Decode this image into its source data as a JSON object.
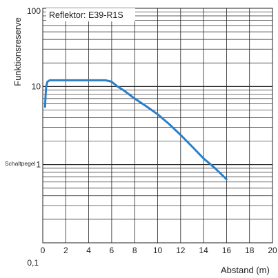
{
  "chart_data": {
    "type": "line",
    "title": "",
    "xlabel": "Abstand (m)",
    "ylabel": "Funktionsreserve",
    "x_ticks": [
      "0",
      "2",
      "4",
      "6",
      "8",
      "10",
      "12",
      "14",
      "16",
      "18",
      "20"
    ],
    "y_ticks": [
      "100",
      "10",
      "1",
      "0,1"
    ],
    "y_scale": "log",
    "xlim": [
      0,
      20
    ],
    "ylim": [
      0.1,
      100
    ],
    "grid": true,
    "legend_label": "Reflektor: E39-R1S",
    "threshold": {
      "label": "Schaltpegel",
      "value": 1.5
    },
    "series_color": "#2a7fc9",
    "series": [
      {
        "name": "",
        "x": [
          0.2,
          0.25,
          0.3,
          0.4,
          0.6,
          1,
          2,
          3,
          4,
          5,
          5.5,
          6.0,
          6.5,
          7,
          8,
          9,
          10,
          11,
          12,
          13,
          14,
          15,
          16
        ],
        "y": [
          5.5,
          8,
          10,
          11.5,
          12,
          12,
          12,
          12,
          12,
          12,
          12,
          11.5,
          10,
          9,
          7,
          5.6,
          4.4,
          3.3,
          2.4,
          1.7,
          1.2,
          0.9,
          0.65
        ]
      }
    ]
  }
}
